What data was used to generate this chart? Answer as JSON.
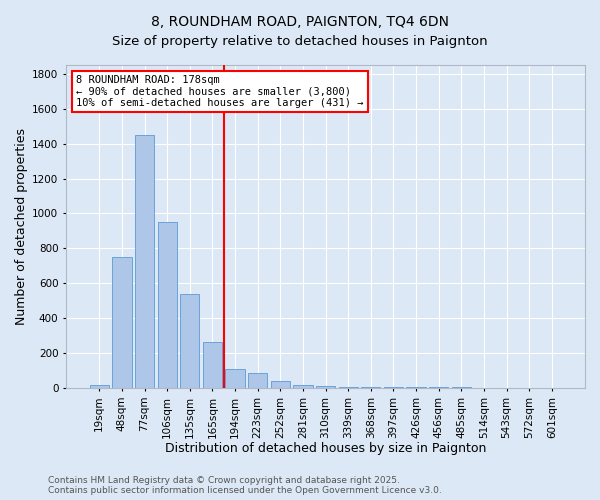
{
  "title": "8, ROUNDHAM ROAD, PAIGNTON, TQ4 6DN",
  "subtitle": "Size of property relative to detached houses in Paignton",
  "xlabel": "Distribution of detached houses by size in Paignton",
  "ylabel": "Number of detached properties",
  "categories": [
    "19sqm",
    "48sqm",
    "77sqm",
    "106sqm",
    "135sqm",
    "165sqm",
    "194sqm",
    "223sqm",
    "252sqm",
    "281sqm",
    "310sqm",
    "339sqm",
    "368sqm",
    "397sqm",
    "426sqm",
    "456sqm",
    "485sqm",
    "514sqm",
    "543sqm",
    "572sqm",
    "601sqm"
  ],
  "values": [
    15,
    750,
    1450,
    950,
    540,
    265,
    110,
    85,
    40,
    20,
    10,
    5,
    5,
    8,
    5,
    8,
    5,
    3,
    2,
    2,
    1
  ],
  "bar_color": "#aec6e8",
  "bar_edge_color": "#5b9bd5",
  "vline_x": 5.5,
  "vline_color": "red",
  "annotation_line1": "8 ROUNDHAM ROAD: 178sqm",
  "annotation_line2": "← 90% of detached houses are smaller (3,800)",
  "annotation_line3": "10% of semi-detached houses are larger (431) →",
  "annotation_box_facecolor": "white",
  "annotation_box_edgecolor": "red",
  "ylim": [
    0,
    1850
  ],
  "yticks": [
    0,
    200,
    400,
    600,
    800,
    1000,
    1200,
    1400,
    1600,
    1800
  ],
  "footnote": "Contains HM Land Registry data © Crown copyright and database right 2025.\nContains public sector information licensed under the Open Government Licence v3.0.",
  "background_color": "#dce8f5",
  "plot_bg_color": "#dce8f5",
  "title_fontsize": 10,
  "subtitle_fontsize": 9.5,
  "axis_label_fontsize": 9,
  "tick_fontsize": 7.5,
  "annotation_fontsize": 7.5,
  "footnote_fontsize": 6.5,
  "grid_color": "white",
  "grid_linewidth": 0.8
}
